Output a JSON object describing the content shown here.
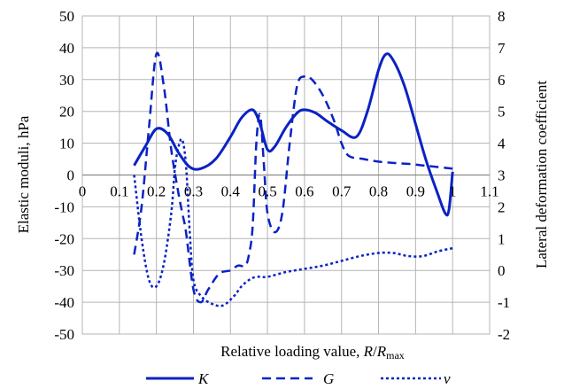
{
  "chart_data": {
    "type": "line",
    "xlabel_parts": [
      "Relative loading value, ",
      "R",
      "/",
      "R",
      "max"
    ],
    "ylabel": "Elastic moduli, hPa",
    "y2label": "Lateral deformation coefficient",
    "xlim": [
      0,
      1.1
    ],
    "ylim": [
      -50,
      50
    ],
    "y2lim": [
      -2,
      8
    ],
    "x_ticks": [
      "0",
      "0.1",
      "0.2",
      "0.3",
      "0.4",
      "0.5",
      "0.6",
      "0.7",
      "0.8",
      "0.9",
      "1",
      "1.1"
    ],
    "y_ticks": [
      "50",
      "40",
      "30",
      "20",
      "10",
      "0",
      "-10",
      "-20",
      "-30",
      "-40",
      "-50"
    ],
    "y2_ticks": [
      "8",
      "7",
      "6",
      "5",
      "4",
      "3",
      "2",
      "1",
      "0",
      "-1",
      "-2"
    ],
    "grid": true,
    "legend_position": "bottom",
    "color": "#0a22c4",
    "series": [
      {
        "name": "K",
        "axis": "left",
        "dash": "solid",
        "x": [
          0.14,
          0.17,
          0.2,
          0.23,
          0.26,
          0.29,
          0.32,
          0.36,
          0.4,
          0.43,
          0.46,
          0.48,
          0.5,
          0.52,
          0.55,
          0.58,
          0.6,
          0.63,
          0.66,
          0.7,
          0.74,
          0.77,
          0.8,
          0.82,
          0.84,
          0.87,
          0.9,
          0.93,
          0.96,
          0.98,
          0.99,
          1.0
        ],
        "y": [
          3,
          9,
          14.5,
          13,
          7,
          2.5,
          2,
          5,
          12,
          18,
          20.5,
          16,
          8,
          9,
          15,
          19.5,
          20.5,
          19.5,
          17,
          14,
          12,
          20,
          33,
          38,
          36,
          28,
          16,
          4,
          -6,
          -12,
          -11,
          1
        ]
      },
      {
        "name": "G",
        "axis": "left",
        "dash": "dashed",
        "x": [
          0.14,
          0.16,
          0.18,
          0.2,
          0.22,
          0.24,
          0.26,
          0.27,
          0.28,
          0.3,
          0.32,
          0.34,
          0.37,
          0.4,
          0.42,
          0.44,
          0.45,
          0.46,
          0.47,
          0.48,
          0.49,
          0.5,
          0.52,
          0.54,
          0.56,
          0.58,
          0.6,
          0.62,
          0.65,
          0.68,
          0.7,
          0.72,
          0.76,
          0.8,
          0.84,
          0.88,
          0.92,
          0.96,
          1.0
        ],
        "y": [
          -25,
          -10,
          15,
          38,
          28,
          8,
          -6,
          -12,
          -18,
          -36,
          -40,
          -36,
          -31,
          -30,
          -28.5,
          -28.5,
          -25,
          -16,
          10,
          19,
          4,
          -12,
          -18,
          -12,
          10,
          28,
          31,
          30,
          25,
          17,
          10,
          6,
          5,
          4.2,
          3.8,
          3.5,
          3,
          2.5,
          2
        ]
      },
      {
        "name": "v",
        "axis": "right",
        "dash": "dotted",
        "x": [
          0.14,
          0.16,
          0.18,
          0.2,
          0.22,
          0.24,
          0.25,
          0.26,
          0.27,
          0.28,
          0.29,
          0.3,
          0.32,
          0.35,
          0.38,
          0.41,
          0.43,
          0.45,
          0.47,
          0.5,
          0.55,
          0.6,
          0.65,
          0.7,
          0.75,
          0.8,
          0.84,
          0.88,
          0.92,
          0.96,
          1.0
        ],
        "y": [
          3,
          1,
          -0.3,
          -0.5,
          0.2,
          1.8,
          3.2,
          3.9,
          4.1,
          3.3,
          1.2,
          -0.3,
          -0.8,
          -1.05,
          -1.1,
          -0.8,
          -0.5,
          -0.3,
          -0.2,
          -0.2,
          -0.05,
          0.05,
          0.15,
          0.3,
          0.45,
          0.55,
          0.55,
          0.45,
          0.45,
          0.6,
          0.7
        ]
      }
    ]
  }
}
